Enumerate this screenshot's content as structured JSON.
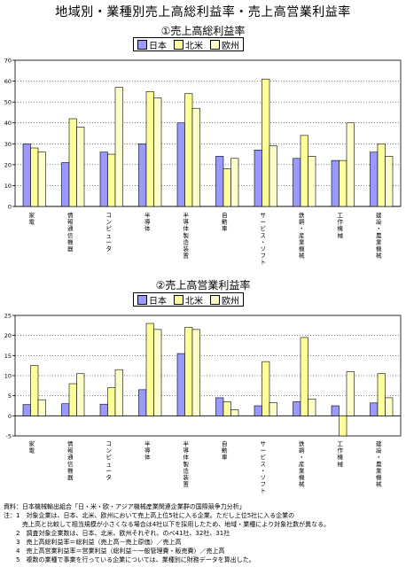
{
  "page_title": "地域別・業種別売上高総利益率・売上高営業利益率",
  "colors": {
    "japan": "#9999ff",
    "na": "#ffff99",
    "eu": "#ffffcc",
    "axis": "#000000",
    "grid": "#000000"
  },
  "legend": [
    "日本",
    "北米",
    "欧州"
  ],
  "chart_data": [
    {
      "type": "bar",
      "title": "①売上高総利益率",
      "categories": [
        "家電",
        "情報通信機器",
        "コンピュータ",
        "半導体",
        "半導体製造装置",
        "自動車",
        "サービス・ソフト",
        "鉄鋼・産業機械",
        "工作機械",
        "建設・農業機械"
      ],
      "series": [
        {
          "name": "日本",
          "values": [
            30,
            21,
            26,
            30,
            40,
            24,
            27,
            23,
            22,
            26
          ]
        },
        {
          "name": "北米",
          "values": [
            28,
            42,
            25,
            55,
            54,
            18,
            61,
            34,
            22,
            30
          ]
        },
        {
          "name": "欧州",
          "values": [
            26,
            38,
            57,
            52,
            47,
            23,
            29,
            24,
            40,
            24
          ]
        }
      ],
      "ylim": [
        0,
        70
      ],
      "yticks": [
        0,
        10,
        20,
        30,
        40,
        50,
        60,
        70
      ],
      "ytick_labels": [
        "0",
        "10",
        "20",
        "30",
        "40",
        "50",
        "60",
        "70"
      ],
      "grid": true,
      "legend": "top-center"
    },
    {
      "type": "bar",
      "title": "②売上高営業利益率",
      "categories": [
        "家電",
        "情報通信機器",
        "コンピュータ",
        "半導体",
        "半導体製造装置",
        "自動車",
        "サービス・ソフト",
        "鉄鋼・産業機械",
        "工作機械",
        "建設・農業機械"
      ],
      "series": [
        {
          "name": "日本",
          "values": [
            2.8,
            3.0,
            2.9,
            6.5,
            15.5,
            4.5,
            2.5,
            3.5,
            2.5,
            3.2
          ]
        },
        {
          "name": "北米",
          "values": [
            12.5,
            8.0,
            7.0,
            23.0,
            22.0,
            3.5,
            13.5,
            19.5,
            -5.0,
            10.5
          ]
        },
        {
          "name": "欧州",
          "values": [
            4.0,
            10.5,
            11.5,
            21.5,
            21.5,
            1.5,
            3.3,
            4.2,
            11.0,
            4.5
          ]
        }
      ],
      "ylim": [
        -5,
        25
      ],
      "yticks": [
        -5,
        0,
        5,
        10,
        15,
        20,
        25
      ],
      "ytick_labels": [
        "-5",
        "0",
        "5",
        "10",
        "15",
        "20",
        "25"
      ],
      "grid": true,
      "legend": "top-center"
    }
  ],
  "notes": [
    "資料：日本機械輸出組合「日・米・欧・アジア機械産業関連企業群の国際競争力分析」",
    "注：1　対象企業は、日本、北米、欧州において売上高上位5社に入る企業。ただし上位5社に入る企業の",
    "　　　売上高と比較して相当規模が小さくなる場合は4社以下を採用したため、地域・業種により対象社数が異なる。",
    "　　2　調査対象企業数は、日本、北米、欧州それぞれ、のべ41社、32社、31社",
    "　　3　売上高総利益率＝総利益（売上高－売上原価）／売上高",
    "　　4　売上高営業利益率＝営業利益（総利益－一般管理費・販売費）／売上高",
    "　　5　複数の業種で事業を行っている企業については、業種別に財務データを算出した。"
  ]
}
